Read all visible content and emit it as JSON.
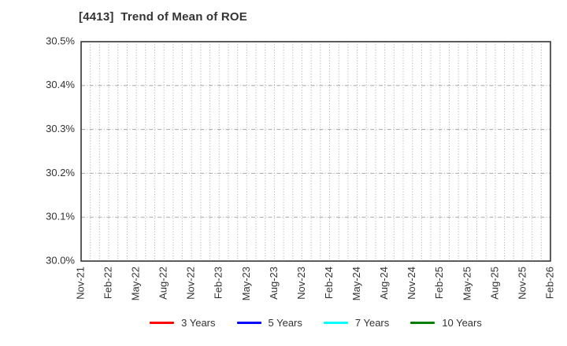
{
  "chart_data": {
    "type": "line",
    "title": "[4413]  Trend of Mean of ROE",
    "xlabel": "",
    "ylabel": "",
    "x_tick_labels": [
      "Nov-21",
      "Feb-22",
      "May-22",
      "Aug-22",
      "Nov-22",
      "Feb-23",
      "May-23",
      "Aug-23",
      "Nov-23",
      "Feb-24",
      "May-24",
      "Aug-24",
      "Nov-24",
      "Feb-25",
      "May-25",
      "Aug-25",
      "Nov-25",
      "Feb-26"
    ],
    "x_months_per_tick": 3,
    "x_total_months": 51,
    "y_ticks": [
      30.0,
      30.1,
      30.2,
      30.3,
      30.4,
      30.5
    ],
    "y_tick_labels": [
      "30.0%",
      "30.1%",
      "30.2%",
      "30.3%",
      "30.4%",
      "30.5%"
    ],
    "ylim": [
      30.0,
      30.5
    ],
    "grid": true,
    "legend_position": "bottom",
    "series": [
      {
        "name": "3 Years",
        "color": "#ff0000",
        "values": []
      },
      {
        "name": "5 Years",
        "color": "#0000ff",
        "values": []
      },
      {
        "name": "7 Years",
        "color": "#00ffff",
        "values": []
      },
      {
        "name": "10 Years",
        "color": "#007f00",
        "values": []
      }
    ]
  },
  "colors": {
    "title_text": "#333333",
    "axis_text": "#333333",
    "plot_border": "#262626",
    "gridline": "#a8a8a8",
    "background": "#ffffff"
  }
}
